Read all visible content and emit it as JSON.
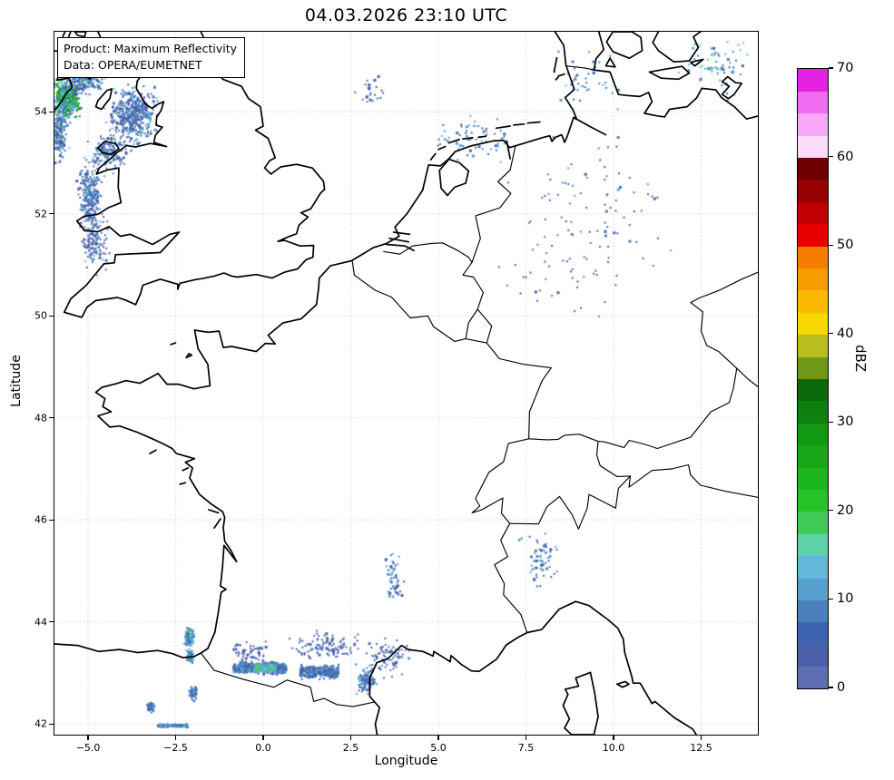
{
  "title": "04.03.2026 23:10 UTC",
  "info_box": {
    "line1": "Product: Maximum Reflectivity",
    "line2": "Data: OPERA/EUMETNET"
  },
  "axes": {
    "x_label": "Longitude",
    "y_label": "Latitude",
    "x_ticks": [
      {
        "label": "−5.0",
        "lon": -5.0
      },
      {
        "label": "−2.5",
        "lon": -2.5
      },
      {
        "label": "0.0",
        "lon": 0.0
      },
      {
        "label": "2.5",
        "lon": 2.5
      },
      {
        "label": "5.0",
        "lon": 5.0
      },
      {
        "label": "7.5",
        "lon": 7.5
      },
      {
        "label": "10.0",
        "lon": 10.0
      },
      {
        "label": "12.5",
        "lon": 12.5
      }
    ],
    "y_ticks": [
      {
        "label": "42",
        "lat": 42
      },
      {
        "label": "44",
        "lat": 44
      },
      {
        "label": "46",
        "lat": 46
      },
      {
        "label": "48",
        "lat": 48
      },
      {
        "label": "50",
        "lat": 50
      },
      {
        "label": "52",
        "lat": 52
      },
      {
        "label": "54",
        "lat": 54
      }
    ]
  },
  "map": {
    "extent": {
      "lon_min": -5.96,
      "lon_max": 14.12,
      "lat_min": 41.79,
      "lat_max": 55.57
    },
    "grid_color": "#c9c9c9",
    "coast_color": "#000000",
    "background": "#ffffff"
  },
  "colorbar": {
    "label": "dBZ",
    "min": 0,
    "max": 70,
    "tick_values": [
      0,
      10,
      20,
      30,
      40,
      50,
      60,
      70
    ],
    "bands": [
      {
        "from": 0.0,
        "to": 2.5,
        "color": "#5f6db1"
      },
      {
        "from": 2.5,
        "to": 5.0,
        "color": "#4b60a9"
      },
      {
        "from": 5.0,
        "to": 7.5,
        "color": "#3e63ae"
      },
      {
        "from": 7.5,
        "to": 10.0,
        "color": "#4a80bc"
      },
      {
        "from": 10.0,
        "to": 12.5,
        "color": "#56a0d0"
      },
      {
        "from": 12.5,
        "to": 15.0,
        "color": "#62b7da"
      },
      {
        "from": 15.0,
        "to": 17.5,
        "color": "#5ed1ab"
      },
      {
        "from": 17.5,
        "to": 20.0,
        "color": "#40cb58"
      },
      {
        "from": 20.0,
        "to": 22.5,
        "color": "#25c325"
      },
      {
        "from": 22.5,
        "to": 25.0,
        "color": "#1eb61e"
      },
      {
        "from": 25.0,
        "to": 27.5,
        "color": "#18a718"
      },
      {
        "from": 27.5,
        "to": 30.0,
        "color": "#139813"
      },
      {
        "from": 30.0,
        "to": 32.5,
        "color": "#0f7f0f"
      },
      {
        "from": 32.5,
        "to": 35.0,
        "color": "#0b680b"
      },
      {
        "from": 35.0,
        "to": 37.5,
        "color": "#6f9915"
      },
      {
        "from": 37.5,
        "to": 40.0,
        "color": "#b9bd1d"
      },
      {
        "from": 40.0,
        "to": 42.5,
        "color": "#f8d800"
      },
      {
        "from": 42.5,
        "to": 45.0,
        "color": "#fbb900"
      },
      {
        "from": 45.0,
        "to": 47.5,
        "color": "#f99c00"
      },
      {
        "from": 47.5,
        "to": 50.0,
        "color": "#f47d00"
      },
      {
        "from": 50.0,
        "to": 52.5,
        "color": "#e80000"
      },
      {
        "from": 52.5,
        "to": 55.0,
        "color": "#c00000"
      },
      {
        "from": 55.0,
        "to": 57.5,
        "color": "#970000"
      },
      {
        "from": 57.5,
        "to": 60.0,
        "color": "#6f0000"
      },
      {
        "from": 60.0,
        "to": 62.5,
        "color": "#fcdcfc"
      },
      {
        "from": 62.5,
        "to": 65.0,
        "color": "#f8a8f8"
      },
      {
        "from": 65.0,
        "to": 67.5,
        "color": "#ef6bef"
      },
      {
        "from": 67.5,
        "to": 70.0,
        "color": "#e322e3"
      }
    ]
  },
  "radar": {
    "clusters": [
      {
        "name": "north-ireland-mass",
        "lon": -5.62,
        "lat": 54.25,
        "sx": 0.3,
        "sy": 0.33,
        "n": 520,
        "dbz": [
          6,
          31
        ],
        "pow": 1.6
      },
      {
        "name": "galloway",
        "lon": -5.1,
        "lat": 54.6,
        "sx": 0.45,
        "sy": 0.25,
        "n": 180,
        "dbz": [
          4,
          18
        ],
        "pow": 2.0
      },
      {
        "name": "irish-sea-west",
        "lon": -5.8,
        "lat": 53.6,
        "sx": 0.22,
        "sy": 0.5,
        "n": 170,
        "dbz": [
          4,
          18
        ],
        "pow": 2.0
      },
      {
        "name": "isle-of-man-area",
        "lon": -3.75,
        "lat": 53.95,
        "sx": 0.6,
        "sy": 0.45,
        "n": 460,
        "dbz": [
          2,
          16
        ],
        "pow": 2.0
      },
      {
        "name": "nw-wales",
        "lon": -4.4,
        "lat": 53.2,
        "sx": 0.5,
        "sy": 0.3,
        "n": 160,
        "dbz": [
          2,
          14
        ],
        "pow": 2.0
      },
      {
        "name": "cardigan-bay",
        "lon": -4.95,
        "lat": 52.4,
        "sx": 0.3,
        "sy": 0.6,
        "n": 230,
        "dbz": [
          2,
          15
        ],
        "pow": 2.0
      },
      {
        "name": "st-georges-channel",
        "lon": -4.8,
        "lat": 51.45,
        "sx": 0.35,
        "sy": 0.5,
        "n": 130,
        "dbz": [
          2,
          13
        ],
        "pow": 2.2
      },
      {
        "name": "pyrenees-band-west",
        "lon": -0.1,
        "lat": 43.1,
        "sx": 0.75,
        "sy": 0.1,
        "n": 620,
        "dbz": [
          3,
          15
        ],
        "pow": 1.7,
        "band": true
      },
      {
        "name": "pyrenees-core",
        "lon": 0.05,
        "lat": 43.1,
        "sx": 0.3,
        "sy": 0.07,
        "n": 230,
        "dbz": [
          10,
          20
        ],
        "pow": 1.5,
        "band": true
      },
      {
        "name": "pyrenees-band-east",
        "lon": 1.6,
        "lat": 43.02,
        "sx": 0.55,
        "sy": 0.12,
        "n": 300,
        "dbz": [
          3,
          14
        ],
        "pow": 1.8,
        "band": true
      },
      {
        "name": "biscay-blob",
        "lon": -2.1,
        "lat": 43.7,
        "sx": 0.12,
        "sy": 0.15,
        "n": 110,
        "dbz": [
          7,
          18
        ],
        "pow": 1.5
      },
      {
        "name": "basque-coast",
        "lon": -2.1,
        "lat": 43.33,
        "sx": 0.1,
        "sy": 0.1,
        "n": 55,
        "dbz": [
          6,
          16
        ],
        "pow": 1.6
      },
      {
        "name": "ebro-hills",
        "lon": -2.0,
        "lat": 42.6,
        "sx": 0.1,
        "sy": 0.13,
        "n": 50,
        "dbz": [
          5,
          14
        ],
        "pow": 1.6
      },
      {
        "name": "rioja",
        "lon": -3.2,
        "lat": 42.33,
        "sx": 0.1,
        "sy": 0.1,
        "n": 40,
        "dbz": [
          5,
          12
        ],
        "pow": 1.6
      },
      {
        "name": "spain-south-dash",
        "lon": -2.6,
        "lat": 41.97,
        "sx": 0.42,
        "sy": 0.03,
        "n": 110,
        "dbz": [
          7,
          13
        ],
        "pow": 1.2,
        "band": true
      },
      {
        "name": "corbieres-blobs",
        "lon": 2.95,
        "lat": 42.85,
        "sx": 0.25,
        "sy": 0.22,
        "n": 110,
        "dbz": [
          4,
          14
        ],
        "pow": 1.8
      },
      {
        "name": "languedoc-speckle",
        "lon": 3.6,
        "lat": 43.3,
        "sx": 0.55,
        "sy": 0.3,
        "n": 80,
        "dbz": [
          2,
          11
        ],
        "pow": 2.2
      },
      {
        "name": "toulouse-speckle",
        "lon": 1.8,
        "lat": 43.55,
        "sx": 0.9,
        "sy": 0.25,
        "n": 110,
        "dbz": [
          2,
          9
        ],
        "pow": 2.2
      },
      {
        "name": "gascony-speckle",
        "lon": -0.4,
        "lat": 43.4,
        "sx": 0.5,
        "sy": 0.22,
        "n": 60,
        "dbz": [
          2,
          9
        ],
        "pow": 2.2
      },
      {
        "name": "massif-central",
        "lon": 3.7,
        "lat": 44.9,
        "sx": 0.25,
        "sy": 0.4,
        "n": 55,
        "dbz": [
          5,
          14
        ],
        "pow": 1.8
      },
      {
        "name": "piedmont",
        "lon": 7.9,
        "lat": 45.3,
        "sx": 0.5,
        "sy": 0.5,
        "n": 60,
        "dbz": [
          5,
          14
        ],
        "pow": 2.0
      },
      {
        "name": "wadden-sea",
        "lon": 6.0,
        "lat": 53.5,
        "sx": 1.0,
        "sy": 0.35,
        "n": 70,
        "dbz": [
          5,
          14
        ],
        "pow": 2.0
      },
      {
        "name": "nw-germany",
        "lon": 9.5,
        "lat": 52.2,
        "sx": 2.0,
        "sy": 1.1,
        "n": 75,
        "dbz": [
          3,
          12
        ],
        "pow": 2.4
      },
      {
        "name": "hesse",
        "lon": 8.6,
        "lat": 50.9,
        "sx": 1.4,
        "sy": 0.8,
        "n": 45,
        "dbz": [
          3,
          10
        ],
        "pow": 2.4
      },
      {
        "name": "baltic",
        "lon": 12.9,
        "lat": 54.9,
        "sx": 1.0,
        "sy": 0.5,
        "n": 60,
        "dbz": [
          6,
          18
        ],
        "pow": 2.0
      },
      {
        "name": "schleswig",
        "lon": 9.2,
        "lat": 54.6,
        "sx": 0.9,
        "sy": 0.5,
        "n": 40,
        "dbz": [
          5,
          13
        ],
        "pow": 2.2
      },
      {
        "name": "north-sea-specks",
        "lon": 3.0,
        "lat": 54.45,
        "sx": 0.45,
        "sy": 0.3,
        "n": 25,
        "dbz": [
          3,
          9
        ],
        "pow": 2.0
      }
    ]
  }
}
